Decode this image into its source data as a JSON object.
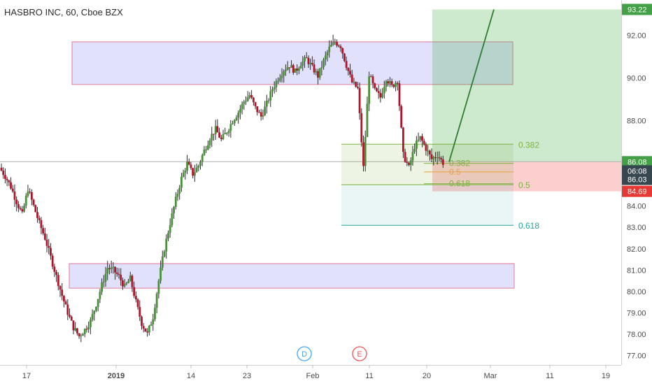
{
  "header": {
    "symbol_title": "HASBRO INC, 60, Cboe BZX"
  },
  "colors": {
    "up_candle": "#4a8f3a",
    "down_candle": "#b0142a",
    "zone_fill": "rgba(120,120,235,0.22)",
    "zone_stroke": "#e07a9a",
    "fib_green": "#7cb342",
    "fib_teal": "#26a69a",
    "fib_orange": "#e6a23c",
    "target_green": "rgba(76,175,80,0.28)",
    "stop_red": "rgba(239,83,80,0.28)",
    "projection_line": "#2e7d32",
    "last_price_tag": "#3a3a3a",
    "current_price_tag": "#37474f",
    "stop_tag": "#e53935",
    "target_tag": "#43a047",
    "entry_tag": "#43a047"
  },
  "price_axis": {
    "min": 76.55,
    "max": 93.4,
    "ticks": [
      {
        "value": 92,
        "label": "92.00"
      },
      {
        "value": 90,
        "label": "90.00"
      },
      {
        "value": 88,
        "label": "88.00"
      },
      {
        "value": 84,
        "label": "84.00"
      },
      {
        "value": 83,
        "label": "83.00"
      },
      {
        "value": 82,
        "label": "82.00"
      },
      {
        "value": 81,
        "label": "81.00"
      },
      {
        "value": 80,
        "label": "80.00"
      },
      {
        "value": 79,
        "label": "79.00"
      },
      {
        "value": 78,
        "label": "78.00"
      },
      {
        "value": 77,
        "label": "77.00"
      }
    ],
    "tags": [
      {
        "value": 93.22,
        "label": "93.22",
        "kind": "target"
      },
      {
        "value": 86.08,
        "label": "86.08",
        "kind": "entry"
      },
      {
        "value": 85.65,
        "label": "06:08",
        "kind": "timer"
      },
      {
        "value": 85.25,
        "label": "86.03",
        "kind": "last"
      },
      {
        "value": 84.69,
        "label": "84.69",
        "kind": "stop"
      }
    ]
  },
  "time_axis": {
    "ticks": [
      {
        "index": 0,
        "label": "17"
      },
      {
        "index": 1,
        "label": "2019"
      },
      {
        "index": 2,
        "label": "14"
      },
      {
        "index": 3,
        "label": "23"
      },
      {
        "index": 4,
        "label": "Feb"
      },
      {
        "index": 5,
        "label": "11"
      },
      {
        "index": 6,
        "label": "20"
      },
      {
        "index": 7,
        "label": "Mar"
      },
      {
        "index": 8,
        "label": "11"
      },
      {
        "index": 9,
        "label": "19"
      }
    ]
  },
  "events": [
    {
      "label": "D",
      "kind": "dividend"
    },
    {
      "label": "E",
      "kind": "earnings"
    }
  ],
  "chart_data": {
    "type": "candlestick",
    "title": "HASBRO INC, 60, Cboe BZX",
    "y_range": [
      76.55,
      93.4
    ],
    "grid": false,
    "zones": [
      {
        "name": "supply",
        "price_low": 89.7,
        "price_high": 91.7
      },
      {
        "name": "demand",
        "price_low": 80.15,
        "price_high": 81.3
      }
    ],
    "fib_sets": [
      {
        "levels": [
          {
            "ratio": "0.382",
            "price": 86.9
          },
          {
            "ratio": "0.5",
            "price": 85.0
          },
          {
            "ratio": "0.618",
            "price": 83.1
          }
        ]
      },
      {
        "levels": [
          {
            "ratio": "0.382",
            "price": 86.0
          },
          {
            "ratio": "0.5",
            "price": 85.6
          },
          {
            "ratio": "0.618",
            "price": 85.05
          }
        ]
      }
    ],
    "position": {
      "entry": 86.08,
      "target": 93.22,
      "stop": 84.69
    },
    "price_path": [
      85.8,
      85.4,
      84.9,
      84.2,
      83.6,
      84.8,
      84.0,
      83.2,
      82.5,
      81.6,
      80.7,
      79.8,
      79.0,
      78.3,
      77.9,
      78.2,
      78.6,
      79.4,
      80.3,
      81.1,
      81.0,
      80.7,
      80.2,
      80.6,
      79.5,
      78.5,
      78.0,
      78.8,
      80.5,
      82.0,
      83.2,
      84.3,
      85.3,
      86.0,
      85.5,
      85.9,
      86.6,
      87.2,
      87.6,
      87.1,
      87.5,
      88.0,
      88.4,
      88.9,
      89.2,
      88.6,
      88.2,
      88.8,
      89.5,
      90.0,
      90.4,
      90.6,
      90.3,
      90.7,
      90.9,
      90.5,
      90.1,
      90.8,
      91.4,
      91.7,
      91.5,
      90.6,
      89.8,
      89.5,
      85.8,
      90.2,
      89.4,
      89.1,
      90.0,
      89.6,
      89.9,
      86.4,
      85.8,
      86.8,
      87.2,
      86.7,
      86.2,
      86.4,
      86.03
    ]
  }
}
